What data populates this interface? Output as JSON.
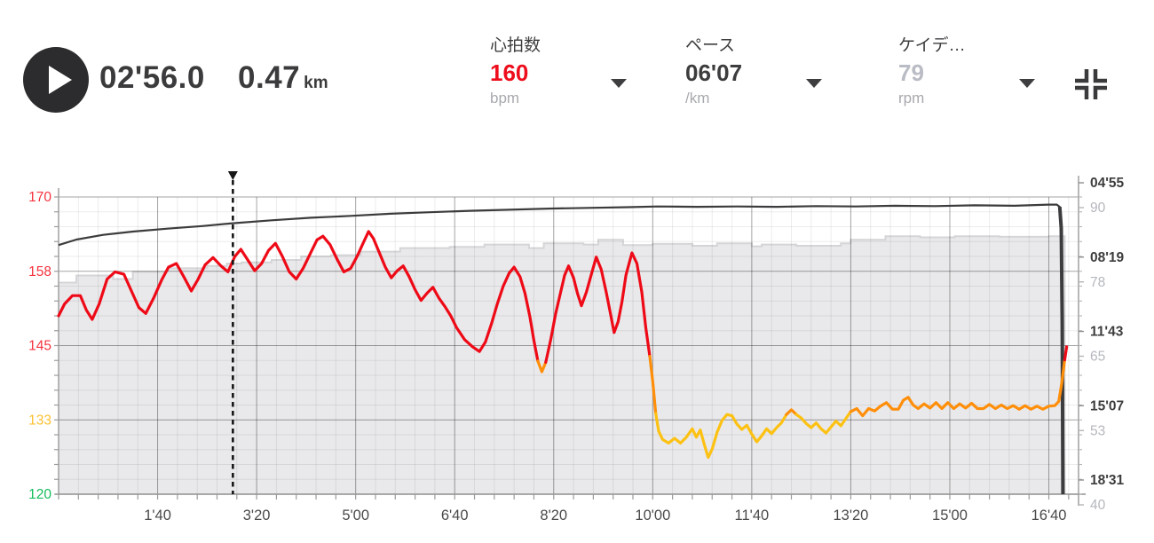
{
  "header": {
    "elapsed_time": "02'56.0",
    "distance_value": "0.47",
    "distance_unit": "km",
    "metrics": [
      {
        "label": "心拍数",
        "value": "160",
        "unit": "bpm",
        "value_color": "#ee0d1c"
      },
      {
        "label": "ペース",
        "value": "06'07",
        "unit": "/km",
        "value_color": "#3d3d3f"
      },
      {
        "label": "ケイデ…",
        "value": "79",
        "unit": "rpm",
        "value_color": "#b9bcc4"
      }
    ]
  },
  "chart_data": {
    "type": "line",
    "x_axis": {
      "unit": "elapsed time (min'sec)",
      "range_s": [
        0,
        1030
      ],
      "major_interval_s": 100,
      "minor_interval_s": 20,
      "ticks": [
        {
          "t": 100,
          "label": "1'40"
        },
        {
          "t": 200,
          "label": "3'20"
        },
        {
          "t": 300,
          "label": "5'00"
        },
        {
          "t": 400,
          "label": "6'40"
        },
        {
          "t": 500,
          "label": "8'20"
        },
        {
          "t": 600,
          "label": "10'00"
        },
        {
          "t": 700,
          "label": "11'40"
        },
        {
          "t": 800,
          "label": "13'20"
        },
        {
          "t": 900,
          "label": "15'00"
        },
        {
          "t": 1000,
          "label": "16'40"
        }
      ]
    },
    "left_axis": {
      "metric": "heart rate (bpm)",
      "range": [
        120,
        170
      ],
      "ticks": [
        {
          "v": 170,
          "label": "170",
          "color": "#f5333f"
        },
        {
          "v": 157.5,
          "label": "158",
          "color": "#f5333f"
        },
        {
          "v": 145,
          "label": "145",
          "color": "#f5333f"
        },
        {
          "v": 132.5,
          "label": "133",
          "color": "#fdc131"
        },
        {
          "v": 120,
          "label": "120",
          "color": "#14bd5c"
        }
      ]
    },
    "right_axis_pace": {
      "metric": "pace (min/km)",
      "range_s_per_km": [
        295,
        1111
      ],
      "color": "#3d3d3f",
      "ticks": [
        {
          "v": 295,
          "label": "04'55"
        },
        {
          "v": 499,
          "label": "08'19"
        },
        {
          "v": 703,
          "label": "11'43"
        },
        {
          "v": 907,
          "label": "15'07"
        },
        {
          "v": 1111,
          "label": "18'31"
        }
      ]
    },
    "right_axis_cadence": {
      "metric": "cadence (rpm)",
      "range": [
        40,
        90
      ],
      "color": "#b4b7bd",
      "ticks": [
        {
          "v": 90,
          "label": "90"
        },
        {
          "v": 77.5,
          "label": "78"
        },
        {
          "v": 65,
          "label": "65"
        },
        {
          "v": 52.5,
          "label": "53"
        },
        {
          "v": 40,
          "label": "40"
        }
      ]
    },
    "playhead": {
      "t": 176,
      "time_label": "02'56.0",
      "color": "#161616"
    },
    "series": {
      "heart_rate": {
        "zones": [
          {
            "max": 133.5,
            "color": "#fdc113"
          },
          {
            "max": 142.0,
            "color": "#ff8e09"
          },
          {
            "max": 999,
            "color": "#ee0a17"
          }
        ],
        "points": [
          [
            0,
            150
          ],
          [
            6,
            152
          ],
          [
            14,
            153.4
          ],
          [
            22,
            153.4
          ],
          [
            28,
            151
          ],
          [
            34,
            149.4
          ],
          [
            41,
            152
          ],
          [
            49,
            156.2
          ],
          [
            57,
            157.4
          ],
          [
            66,
            157
          ],
          [
            73,
            154.4
          ],
          [
            81,
            151.4
          ],
          [
            88,
            150.4
          ],
          [
            96,
            153
          ],
          [
            104,
            156
          ],
          [
            111,
            158.2
          ],
          [
            119,
            158.8
          ],
          [
            127,
            156.4
          ],
          [
            134,
            154.2
          ],
          [
            141,
            156.2
          ],
          [
            148,
            158.6
          ],
          [
            156,
            159.8
          ],
          [
            164,
            158.4
          ],
          [
            171,
            157.4
          ],
          [
            178,
            160
          ],
          [
            184,
            161.2
          ],
          [
            191,
            159.4
          ],
          [
            198,
            157.6
          ],
          [
            205,
            158.8
          ],
          [
            212,
            161
          ],
          [
            219,
            162.2
          ],
          [
            226,
            160
          ],
          [
            233,
            157.4
          ],
          [
            240,
            156.2
          ],
          [
            247,
            158
          ],
          [
            254,
            160.4
          ],
          [
            261,
            162.8
          ],
          [
            267,
            163.4
          ],
          [
            274,
            162
          ],
          [
            281,
            159.6
          ],
          [
            288,
            157.4
          ],
          [
            295,
            158
          ],
          [
            302,
            160.2
          ],
          [
            308,
            162.4
          ],
          [
            313,
            164.2
          ],
          [
            318,
            163
          ],
          [
            324,
            160.6
          ],
          [
            330,
            158.2
          ],
          [
            336,
            156.4
          ],
          [
            342,
            157.6
          ],
          [
            348,
            158.4
          ],
          [
            354,
            156.6
          ],
          [
            360,
            154.4
          ],
          [
            366,
            152.6
          ],
          [
            372,
            153.8
          ],
          [
            378,
            154.8
          ],
          [
            384,
            153
          ],
          [
            390,
            151.6
          ],
          [
            396,
            150
          ],
          [
            402,
            148
          ],
          [
            410,
            146
          ],
          [
            418,
            144.8
          ],
          [
            425,
            144
          ],
          [
            431,
            145.6
          ],
          [
            437,
            148.6
          ],
          [
            443,
            152
          ],
          [
            449,
            155
          ],
          [
            455,
            157.2
          ],
          [
            460,
            158.2
          ],
          [
            466,
            156.6
          ],
          [
            471,
            153.8
          ],
          [
            476,
            149.8
          ],
          [
            480,
            145.8
          ],
          [
            484,
            142.4
          ],
          [
            488,
            140.6
          ],
          [
            492,
            142.2
          ],
          [
            497,
            146
          ],
          [
            502,
            150.4
          ],
          [
            507,
            154
          ],
          [
            511,
            156.8
          ],
          [
            515,
            158.4
          ],
          [
            520,
            156.4
          ],
          [
            524,
            153.8
          ],
          [
            528,
            151.7
          ],
          [
            533,
            154
          ],
          [
            538,
            157
          ],
          [
            543,
            159.9
          ],
          [
            548,
            157.8
          ],
          [
            553,
            154
          ],
          [
            557,
            150.6
          ],
          [
            561,
            147.2
          ],
          [
            565,
            149
          ],
          [
            569,
            152.4
          ],
          [
            573,
            156.9
          ],
          [
            579,
            160.6
          ],
          [
            584,
            158.8
          ],
          [
            589,
            154
          ],
          [
            593,
            148
          ],
          [
            597,
            143.2
          ],
          [
            600,
            139
          ],
          [
            603,
            133.6
          ],
          [
            606,
            130.6
          ],
          [
            610,
            129.2
          ],
          [
            616,
            128.6
          ],
          [
            622,
            129.4
          ],
          [
            628,
            128.6
          ],
          [
            634,
            129.6
          ],
          [
            640,
            131
          ],
          [
            644,
            129.6
          ],
          [
            648,
            130.8
          ],
          [
            652,
            128.4
          ],
          [
            656,
            126.2
          ],
          [
            660,
            127.6
          ],
          [
            665,
            130.4
          ],
          [
            670,
            132.4
          ],
          [
            675,
            133.4
          ],
          [
            680,
            133.2
          ],
          [
            685,
            131.8
          ],
          [
            690,
            130.9
          ],
          [
            695,
            131.6
          ],
          [
            700,
            130.1
          ],
          [
            705,
            128.8
          ],
          [
            710,
            129.8
          ],
          [
            715,
            131
          ],
          [
            720,
            130.2
          ],
          [
            725,
            131.2
          ],
          [
            730,
            132
          ],
          [
            735,
            133.4
          ],
          [
            740,
            134.2
          ],
          [
            745,
            133.4
          ],
          [
            750,
            132.8
          ],
          [
            755,
            131.9
          ],
          [
            760,
            131.2
          ],
          [
            765,
            132
          ],
          [
            770,
            131
          ],
          [
            775,
            130.3
          ],
          [
            780,
            131.3
          ],
          [
            785,
            132.3
          ],
          [
            790,
            131.5
          ],
          [
            795,
            132.7
          ],
          [
            800,
            133.9
          ],
          [
            806,
            134.4
          ],
          [
            812,
            133.2
          ],
          [
            818,
            134.4
          ],
          [
            824,
            134
          ],
          [
            830,
            134.8
          ],
          [
            836,
            135.4
          ],
          [
            842,
            134.3
          ],
          [
            848,
            134.3
          ],
          [
            853,
            135.8
          ],
          [
            858,
            136.3
          ],
          [
            863,
            135
          ],
          [
            868,
            134.4
          ],
          [
            874,
            135.2
          ],
          [
            880,
            134.5
          ],
          [
            886,
            135.4
          ],
          [
            892,
            134.4
          ],
          [
            898,
            135.4
          ],
          [
            904,
            134.4
          ],
          [
            910,
            135.2
          ],
          [
            916,
            134.5
          ],
          [
            922,
            135.3
          ],
          [
            928,
            134.4
          ],
          [
            934,
            134.4
          ],
          [
            940,
            135.1
          ],
          [
            946,
            134.4
          ],
          [
            952,
            135
          ],
          [
            958,
            134.4
          ],
          [
            964,
            134.9
          ],
          [
            970,
            134.3
          ],
          [
            976,
            134.9
          ],
          [
            982,
            134.3
          ],
          [
            988,
            134.8
          ],
          [
            994,
            134.3
          ],
          [
            1000,
            134.8
          ],
          [
            1006,
            134.9
          ],
          [
            1010,
            135.6
          ],
          [
            1013,
            138.6
          ],
          [
            1016,
            142.6
          ],
          [
            1018,
            144.8
          ]
        ]
      },
      "pace": {
        "color": "#3c3c3e",
        "end_plunge_t": 1010,
        "points": [
          [
            0,
            427
          ],
          [
            18,
            412
          ],
          [
            45,
            399
          ],
          [
            75,
            390
          ],
          [
            110,
            382
          ],
          [
            145,
            375
          ],
          [
            176,
            367
          ],
          [
            215,
            359
          ],
          [
            255,
            352
          ],
          [
            295,
            347
          ],
          [
            335,
            341
          ],
          [
            375,
            337
          ],
          [
            415,
            333
          ],
          [
            455,
            330
          ],
          [
            495,
            327
          ],
          [
            535,
            325
          ],
          [
            575,
            323
          ],
          [
            605,
            321
          ],
          [
            645,
            322
          ],
          [
            685,
            321
          ],
          [
            725,
            322
          ],
          [
            765,
            320
          ],
          [
            805,
            321
          ],
          [
            845,
            319
          ],
          [
            885,
            320
          ],
          [
            925,
            318
          ],
          [
            965,
            319
          ],
          [
            1000,
            316
          ],
          [
            1008,
            316
          ],
          [
            1011,
            322
          ],
          [
            1012.5,
            380
          ],
          [
            1013.5,
            640
          ],
          [
            1014.2,
            1111
          ]
        ]
      },
      "cadence": {
        "fill": "#e9e9eb",
        "edge": "#d5d5d8",
        "points": [
          [
            0,
            75.6
          ],
          [
            18,
            76.8
          ],
          [
            55,
            76.2
          ],
          [
            75,
            77.4
          ],
          [
            110,
            78
          ],
          [
            150,
            78.4
          ],
          [
            170,
            78.8
          ],
          [
            185,
            79
          ],
          [
            215,
            79.4
          ],
          [
            245,
            80
          ],
          [
            275,
            80.2
          ],
          [
            305,
            80.8
          ],
          [
            345,
            81.4
          ],
          [
            395,
            81.6
          ],
          [
            430,
            82
          ],
          [
            475,
            81.4
          ],
          [
            490,
            82.2
          ],
          [
            530,
            82
          ],
          [
            545,
            82.8
          ],
          [
            570,
            81.9
          ],
          [
            600,
            82.1
          ],
          [
            640,
            81.8
          ],
          [
            665,
            82.2
          ],
          [
            700,
            81.7
          ],
          [
            710,
            82
          ],
          [
            745,
            81.8
          ],
          [
            790,
            82.2
          ],
          [
            800,
            82.8
          ],
          [
            835,
            83.4
          ],
          [
            870,
            83.2
          ],
          [
            905,
            83.4
          ],
          [
            950,
            83.3
          ],
          [
            1000,
            83.4
          ],
          [
            1016,
            83.4
          ]
        ]
      }
    }
  }
}
